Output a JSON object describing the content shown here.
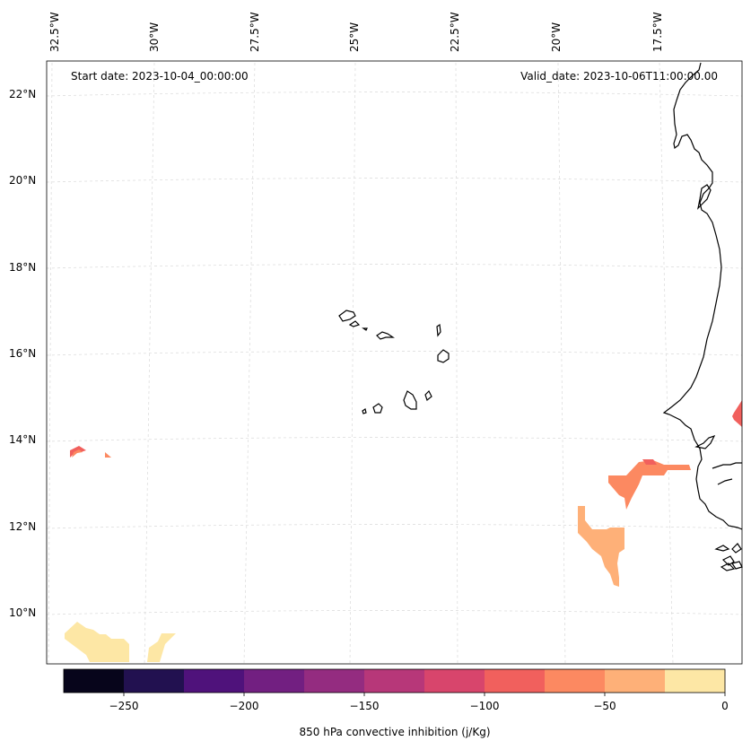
{
  "map": {
    "start_date_text": "Start date: 2023-10-04_00:00:00",
    "valid_date_text": "Valid_date: 2023-10-06T11:00:00.00",
    "lon_labels": [
      "32.5°W",
      "30°W",
      "27.5°W",
      "25°W",
      "22.5°W",
      "20°W",
      "17.5°W"
    ],
    "lat_labels": [
      "22°N",
      "20°N",
      "18°N",
      "16°N",
      "14°N",
      "12°N",
      "10°N"
    ],
    "gridlines": "dashed-light-gray",
    "coastline_color": "#000000"
  },
  "colorbar": {
    "title": "850 hPa convective inhibition (j/Kg)",
    "tick_labels": [
      "−250",
      "−200",
      "−150",
      "−100",
      "−50",
      "0"
    ],
    "range": [
      -275,
      0
    ],
    "colors": [
      "#07051b",
      "#221150",
      "#4f127b",
      "#721f81",
      "#942c80",
      "#b73779",
      "#d8456c",
      "#f1605d",
      "#fc8961",
      "#feb078",
      "#fde7a5"
    ]
  }
}
